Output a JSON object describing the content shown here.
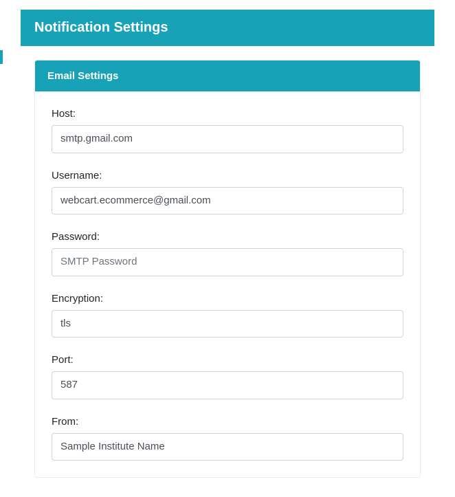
{
  "colors": {
    "accent": "#17a2b8",
    "border": "#ced4da",
    "text": "#212529",
    "input_text": "#495057",
    "placeholder": "#6c757d",
    "card_border": "#e9ecef",
    "background": "#ffffff"
  },
  "header": {
    "title": "Notification Settings"
  },
  "email_settings": {
    "card_title": "Email Settings",
    "fields": {
      "host": {
        "label": "Host:",
        "value": "smtp.gmail.com",
        "placeholder": ""
      },
      "username": {
        "label": "Username:",
        "value": "webcart.ecommerce@gmail.com",
        "placeholder": ""
      },
      "password": {
        "label": "Password:",
        "value": "",
        "placeholder": "SMTP Password"
      },
      "encryption": {
        "label": "Encryption:",
        "value": "tls",
        "placeholder": ""
      },
      "port": {
        "label": "Port:",
        "value": "587",
        "placeholder": ""
      },
      "from": {
        "label": "From:",
        "value": "Sample Institute Name",
        "placeholder": ""
      }
    }
  }
}
